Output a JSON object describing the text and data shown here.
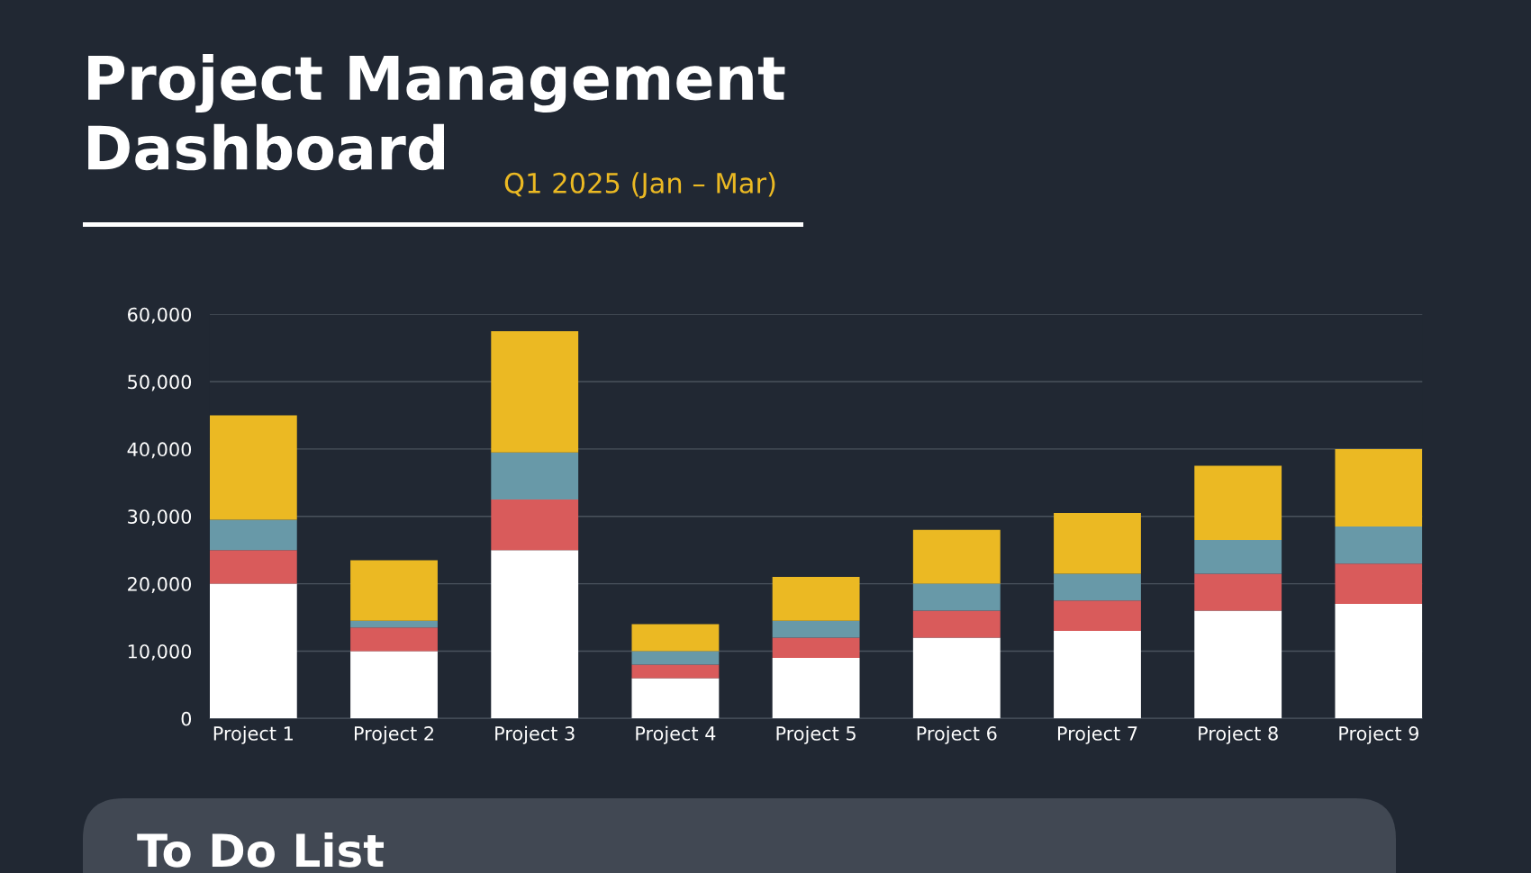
{
  "chart_data": {
    "type": "bar",
    "title": "Project Management\nDashboard",
    "subtitle": "Q1 2025 (Jan – Mar)",
    "annotations": [
      "To Do List"
    ],
    "categories": [
      "Project 1",
      "Project 2",
      "Project 3",
      "Project 4",
      "Project 5",
      "Project 6",
      "Project 7",
      "Project 8",
      "Project 9"
    ],
    "stacked": true,
    "series": [
      {
        "color": "#ffffff",
        "values": [
          20000,
          10000,
          25000,
          6000,
          9000,
          12000,
          13000,
          16000,
          17000
        ]
      },
      {
        "color": "#d95b5b",
        "values": [
          5000,
          3500,
          7500,
          2000,
          3000,
          4000,
          4500,
          5500,
          6000
        ]
      },
      {
        "color": "#6899a8",
        "values": [
          4500,
          1000,
          7000,
          2000,
          2500,
          4000,
          4000,
          5000,
          5500
        ]
      },
      {
        "color": "#ebb923",
        "values": [
          15500,
          9000,
          18000,
          4000,
          6500,
          8000,
          9000,
          11000,
          11500
        ]
      }
    ],
    "ylim": [
      0,
      60000
    ],
    "yticks": [
      {
        "value": 0,
        "label": "0"
      },
      {
        "value": 10000,
        "label": "10,000"
      },
      {
        "value": 20000,
        "label": "20,000"
      },
      {
        "value": 30000,
        "label": "30,000"
      },
      {
        "value": 40000,
        "label": "40,000"
      },
      {
        "value": 50000,
        "label": "50,000"
      },
      {
        "value": 60000,
        "label": "60,000"
      }
    ],
    "grid": "y",
    "legend": false
  }
}
